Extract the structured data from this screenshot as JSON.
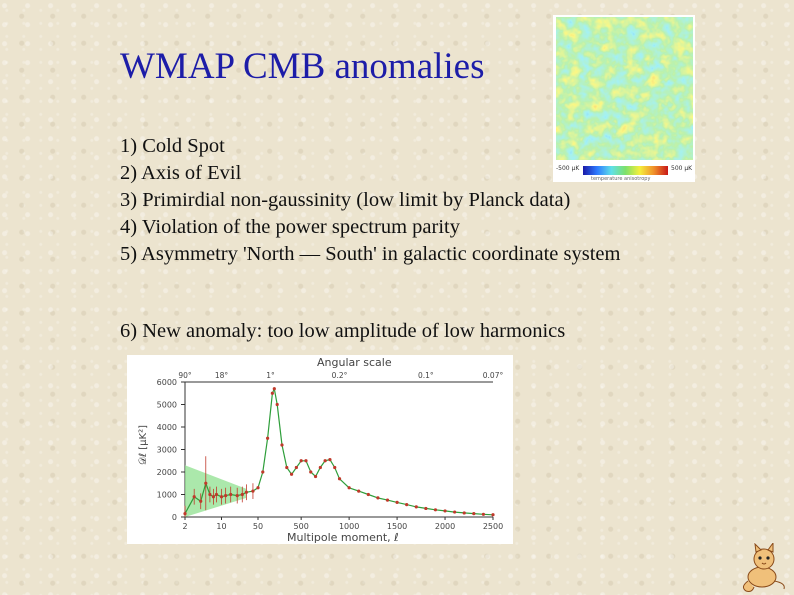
{
  "slide": {
    "title": "WMAP CMB anomalies",
    "items": [
      "1) Cold Spot",
      "2) Axis of Evil",
      "3) Primirdial non-gaussinity (low limit by Planck data)",
      "4) Violation of the power spectrum parity",
      "5) Asymmetry 'North — South'  in galactic coordinate system"
    ],
    "item6": "6) New anomaly: too low amplitude of low harmonics"
  },
  "cmb_map": {
    "scale_min": "-500 μK",
    "scale_max": "500 μK",
    "caption": "temperature anisotropy",
    "colormap": [
      "#1a1aa8",
      "#2e7bff",
      "#5fe0e8",
      "#7de06a",
      "#f5ef3c",
      "#f0902a",
      "#c81818"
    ]
  },
  "chart_data": {
    "type": "scatter",
    "title": "Angular scale",
    "xlabel": "Multipole moment, ℓ",
    "ylabel": "𝒟ℓ [μK²]",
    "ylim": [
      0,
      6000
    ],
    "yticks": [
      0,
      1000,
      2000,
      3000,
      4000,
      5000,
      6000
    ],
    "xticks": [
      "2",
      "10",
      "50",
      "500",
      "1000",
      "1500",
      "2000",
      "2500"
    ],
    "top_ticks": [
      "90°",
      "18°",
      "1°",
      "0.2°",
      "0.1°",
      "0.07°"
    ],
    "axis": "log scale for ℓ < 50, linear for ℓ ≥ 50",
    "colors": {
      "points": "#c0392b",
      "model": "#2e9e3a",
      "band": "#8fe08f"
    },
    "points": [
      {
        "x": 2,
        "y": 150
      },
      {
        "x": 3,
        "y": 900
      },
      {
        "x": 4,
        "y": 700
      },
      {
        "x": 5,
        "y": 1500
      },
      {
        "x": 6,
        "y": 1000
      },
      {
        "x": 7,
        "y": 900
      },
      {
        "x": 8,
        "y": 1000
      },
      {
        "x": 10,
        "y": 900
      },
      {
        "x": 12,
        "y": 950
      },
      {
        "x": 15,
        "y": 1000
      },
      {
        "x": 20,
        "y": 950
      },
      {
        "x": 25,
        "y": 1000
      },
      {
        "x": 30,
        "y": 1100
      },
      {
        "x": 40,
        "y": 1150
      },
      {
        "x": 50,
        "y": 1300
      },
      {
        "x": 100,
        "y": 2000
      },
      {
        "x": 150,
        "y": 3500
      },
      {
        "x": 200,
        "y": 5500
      },
      {
        "x": 220,
        "y": 5700
      },
      {
        "x": 250,
        "y": 5000
      },
      {
        "x": 300,
        "y": 3200
      },
      {
        "x": 350,
        "y": 2200
      },
      {
        "x": 400,
        "y": 1900
      },
      {
        "x": 450,
        "y": 2200
      },
      {
        "x": 500,
        "y": 2500
      },
      {
        "x": 550,
        "y": 2500
      },
      {
        "x": 600,
        "y": 2000
      },
      {
        "x": 650,
        "y": 1800
      },
      {
        "x": 700,
        "y": 2200
      },
      {
        "x": 750,
        "y": 2500
      },
      {
        "x": 800,
        "y": 2550
      },
      {
        "x": 850,
        "y": 2200
      },
      {
        "x": 900,
        "y": 1700
      },
      {
        "x": 1000,
        "y": 1300
      },
      {
        "x": 1100,
        "y": 1150
      },
      {
        "x": 1200,
        "y": 1000
      },
      {
        "x": 1300,
        "y": 850
      },
      {
        "x": 1400,
        "y": 750
      },
      {
        "x": 1500,
        "y": 650
      },
      {
        "x": 1600,
        "y": 550
      },
      {
        "x": 1700,
        "y": 450
      },
      {
        "x": 1800,
        "y": 380
      },
      {
        "x": 1900,
        "y": 320
      },
      {
        "x": 2000,
        "y": 270
      },
      {
        "x": 2100,
        "y": 220
      },
      {
        "x": 2200,
        "y": 180
      },
      {
        "x": 2300,
        "y": 150
      },
      {
        "x": 2400,
        "y": 120
      },
      {
        "x": 2500,
        "y": 100
      }
    ]
  }
}
